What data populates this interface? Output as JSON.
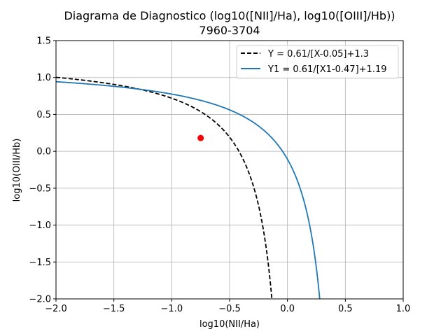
{
  "chart_data": {
    "type": "line",
    "title": "Diagrama de Diagnostico (log10([NII]/Ha), log10([OIII]/Hb))",
    "subtitle": "7960-3704",
    "xlabel": "log10(NII/Ha)",
    "ylabel": "log10(OIII/Hb)",
    "xlim": [
      -2.0,
      1.0
    ],
    "ylim": [
      -2.0,
      1.5
    ],
    "xticks": [
      -2.0,
      -1.5,
      -1.0,
      -0.5,
      0.0,
      0.5,
      1.0
    ],
    "xtick_labels": [
      "−2.0",
      "−1.5",
      "−1.0",
      "−0.5",
      "0.0",
      "0.5",
      "1.0"
    ],
    "yticks": [
      -2.0,
      -1.5,
      -1.0,
      -0.5,
      0.0,
      0.5,
      1.0,
      1.5
    ],
    "ytick_labels": [
      "−2.0",
      "−1.5",
      "−1.0",
      "−0.5",
      "0.0",
      "0.5",
      "1.0",
      "1.5"
    ],
    "grid": true,
    "legend_position": "top-right",
    "series": [
      {
        "name": "Y = 0.61/[X-0.05]+1.3",
        "kind": "curve",
        "a": 0.61,
        "b": 0.05,
        "c": 1.3,
        "color": "#000000",
        "style": "dashed"
      },
      {
        "name": "Y1 = 0.61/[X1-0.47]+1.19",
        "kind": "curve",
        "a": 0.61,
        "b": 0.47,
        "c": 1.19,
        "color": "#1f77b4",
        "style": "solid"
      }
    ],
    "points": [
      {
        "x": -0.75,
        "y": 0.18,
        "color": "#ff0000"
      }
    ]
  }
}
